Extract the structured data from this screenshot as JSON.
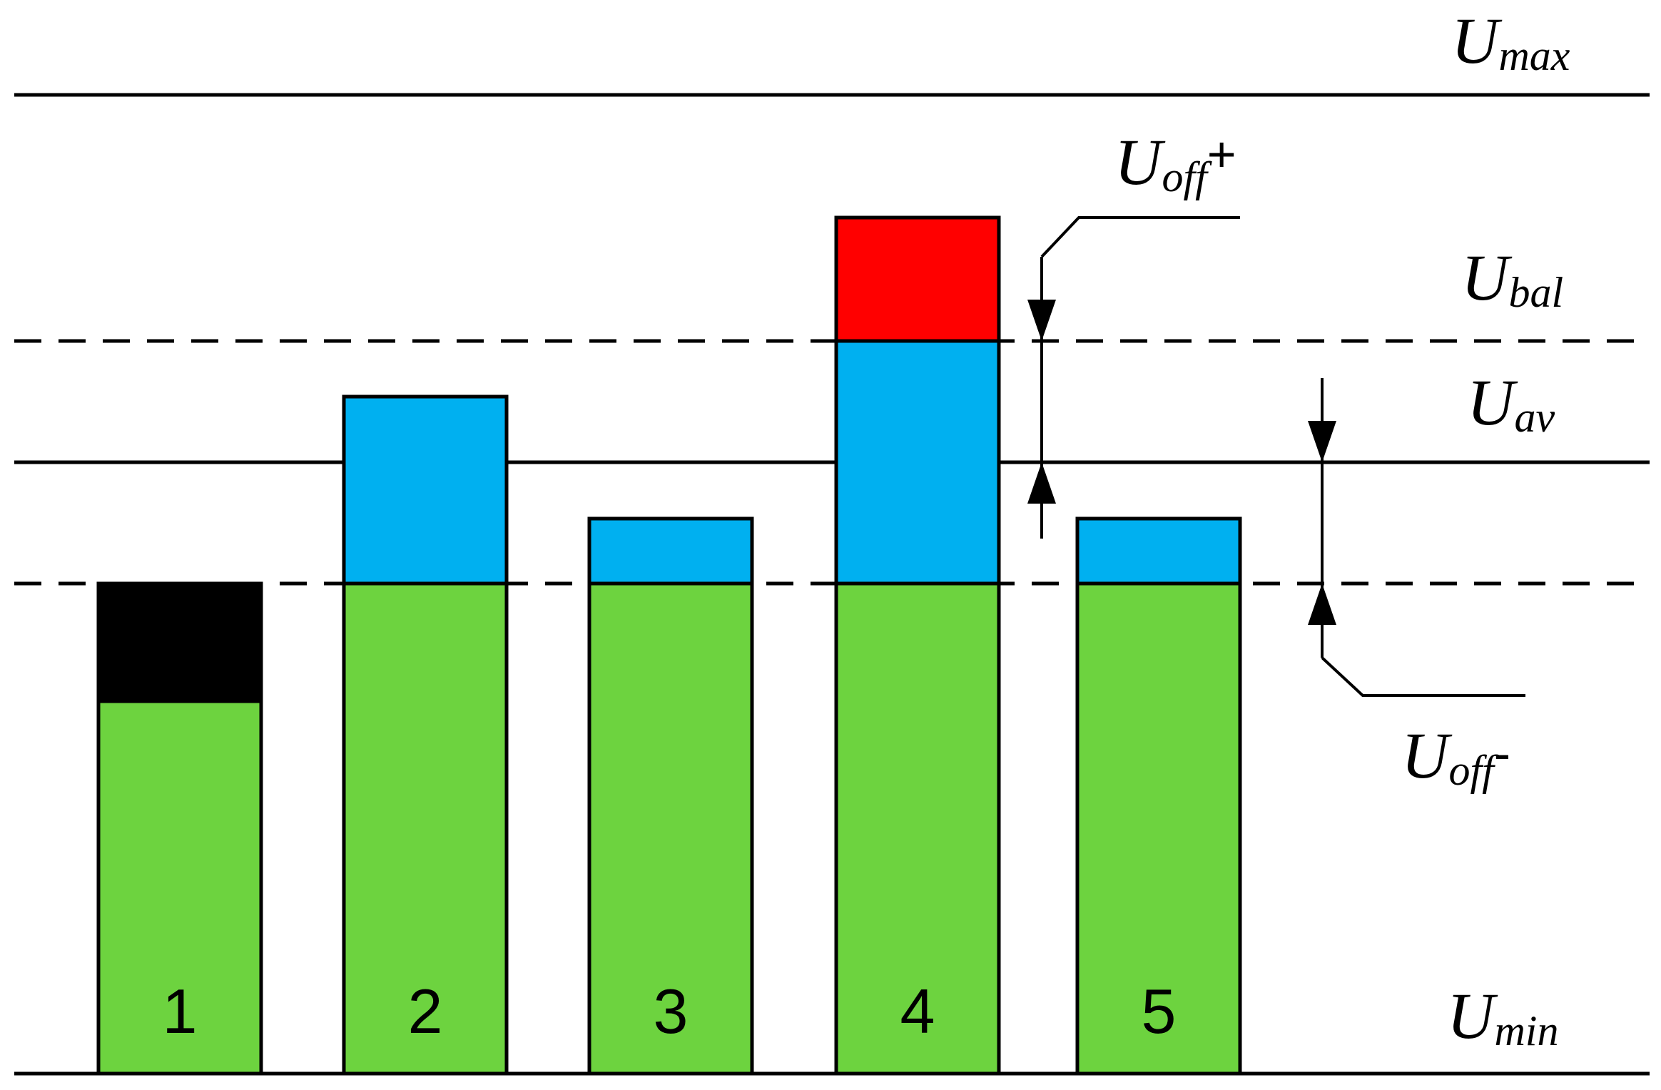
{
  "levels": {
    "u_max": {
      "main": "U",
      "sub": "max"
    },
    "u_bal": {
      "main": "U",
      "sub": "bal"
    },
    "u_av": {
      "main": "U",
      "sub": "av"
    },
    "u_min": {
      "main": "U",
      "sub": "min"
    },
    "u_off_plus": {
      "main": "U",
      "sub": "off",
      "sign": "+"
    },
    "u_off_minus": {
      "main": "U",
      "sub": "off",
      "sign": "-"
    }
  },
  "colors": {
    "green": "#6dd33f",
    "blue": "#00b0f0",
    "red": "#ff0000",
    "black": "#000000"
  },
  "cells": [
    {
      "label": "1"
    },
    {
      "label": "2"
    },
    {
      "label": "3"
    },
    {
      "label": "4"
    },
    {
      "label": "5"
    }
  ]
}
